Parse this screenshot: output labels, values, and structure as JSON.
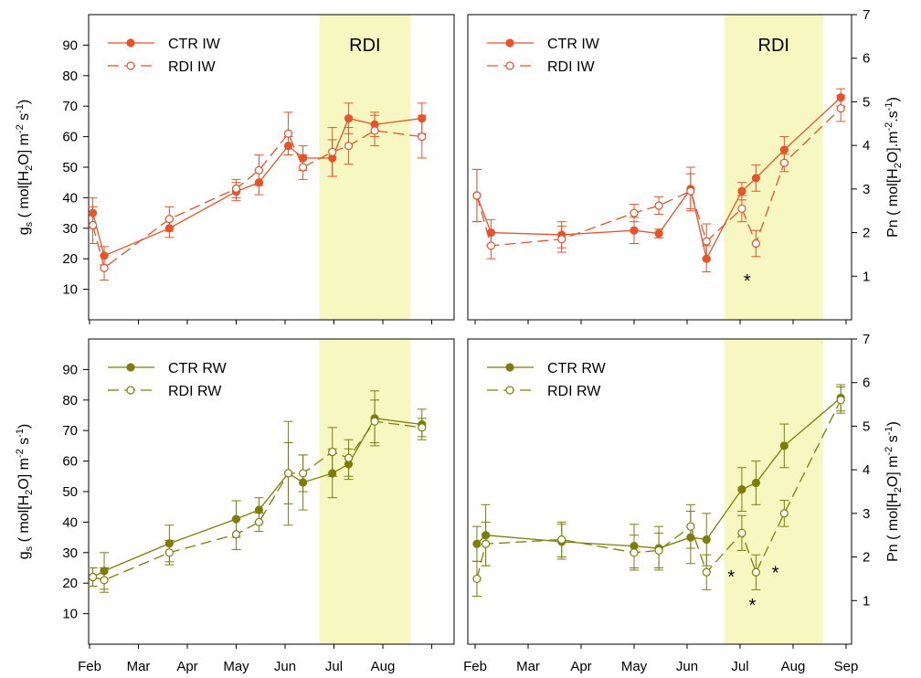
{
  "figure": {
    "months": [
      "Feb",
      "Mar",
      "Apr",
      "May",
      "Jun",
      "Jul",
      "Aug"
    ],
    "months_right": [
      "Feb",
      "Mar",
      "Apr",
      "May",
      "Jun",
      "Jul",
      "Aug",
      "Sep"
    ],
    "gs_ticks": [
      "10",
      "20",
      "30",
      "40",
      "50",
      "60",
      "70",
      "80",
      "90"
    ],
    "pn_ticks": [
      "1",
      "2",
      "3",
      "4",
      "5",
      "6",
      "7"
    ],
    "rdi_label": "RDI",
    "ylabel_left_top": "g s ( mol[H 2 O] m -2 s -1 )",
    "ylabel_left_bottom": "g s ( mol[H 2 O] m -2 s -1 )",
    "ylabel_right_top": "Pn ( mol[H 2 O].m -2 .s -1 )",
    "ylabel_right_bottom": "Pn ( mol[H 2 O] m -2 s -1 )",
    "colors": {
      "iw": "#e8532a",
      "rw": "#7d7d0a",
      "rdi_band": "#f7f7c2"
    }
  },
  "chart_data": [
    {
      "type": "line",
      "panel": "top-left",
      "ylabel": "gs (mol[H2O] m-2 s-1)",
      "ylim": [
        0,
        100
      ],
      "xlim": [
        "Feb",
        "Sep"
      ],
      "rdi_period": [
        "Jun 22",
        "Aug 18"
      ],
      "legend_position": "top-left",
      "series": [
        {
          "name": "CTR IW",
          "style": "solid-filled",
          "x": [
            "Feb 3",
            "Feb 10",
            "Mar 20",
            "May 1",
            "May 15",
            "Jun 3",
            "Jun 12",
            "Jun 30",
            "Jul 10",
            "Jul 26",
            "Aug 25"
          ],
          "y": [
            35,
            21,
            30,
            42,
            45,
            57,
            53,
            53,
            66,
            64,
            66
          ],
          "err": [
            5,
            3,
            3,
            3,
            4,
            3,
            4,
            6,
            5,
            4,
            5
          ]
        },
        {
          "name": "RDI IW",
          "style": "dashed-open",
          "x": [
            "Feb 3",
            "Feb 10",
            "Mar 20",
            "May 1",
            "May 15",
            "Jun 3",
            "Jun 12",
            "Jun 30",
            "Jul 10",
            "Jul 26",
            "Aug 25"
          ],
          "y": [
            31,
            17,
            33,
            43,
            49,
            61,
            50,
            55,
            57,
            62,
            60
          ],
          "err": [
            6,
            4,
            4,
            3,
            5,
            7,
            4,
            8,
            6,
            5,
            7
          ]
        }
      ]
    },
    {
      "type": "line",
      "panel": "top-right",
      "ylabel": "Pn (mol[H2O].m-2.s-1)",
      "ylim": [
        0,
        7
      ],
      "xlim": [
        "Feb",
        "Sep"
      ],
      "rdi_period": [
        "Jun 22",
        "Aug 18"
      ],
      "legend_position": "top-left",
      "annotations": [
        {
          "text": "*",
          "x": "Jul 5",
          "y": 0.9
        }
      ],
      "series": [
        {
          "name": "CTR IW",
          "style": "solid-filled",
          "x": [
            "Feb 2",
            "Feb 10",
            "Mar 20",
            "May 1",
            "May 15",
            "Jun 3",
            "Jun 12",
            "Jul 2",
            "Jul 10",
            "Jul 26",
            "Aug 28"
          ],
          "y": [
            2.85,
            2.0,
            1.95,
            2.05,
            1.98,
            3.0,
            1.4,
            2.95,
            3.25,
            3.9,
            5.1
          ],
          "err": [
            0.6,
            0.3,
            0.3,
            0.3,
            0.1,
            0.5,
            0.3,
            0.2,
            0.3,
            0.3,
            0.2
          ]
        },
        {
          "name": "RDI IW",
          "style": "dashed-open",
          "x": [
            "Feb 2",
            "Feb 10",
            "Mar 20",
            "May 1",
            "May 15",
            "Jun 3",
            "Jun 12",
            "Jul 2",
            "Jul 10",
            "Jul 26",
            "Aug 28"
          ],
          "y": [
            2.85,
            1.7,
            1.85,
            2.45,
            2.62,
            2.95,
            1.8,
            2.55,
            1.75,
            3.6,
            4.85
          ],
          "err": [
            0.6,
            0.3,
            0.3,
            0.2,
            0.2,
            0.4,
            0.4,
            0.3,
            0.3,
            0.2,
            0.3
          ]
        }
      ]
    },
    {
      "type": "line",
      "panel": "bottom-left",
      "ylabel": "gs (mol[H2O] m-2 s-1)",
      "ylim": [
        0,
        100
      ],
      "xlim": [
        "Feb",
        "Sep"
      ],
      "rdi_period": [
        "Jun 22",
        "Aug 18"
      ],
      "legend_position": "top-left",
      "series": [
        {
          "name": "CTR RW",
          "style": "solid-filled",
          "x": [
            "Feb 3",
            "Feb 10",
            "Mar 20",
            "May 1",
            "May 15",
            "Jun 3",
            "Jun 12",
            "Jun 30",
            "Jul 10",
            "Jul 26",
            "Aug 25"
          ],
          "y": [
            22,
            24,
            33,
            41,
            44,
            56,
            53,
            56,
            59,
            74,
            72
          ],
          "err": [
            3,
            6,
            6,
            6,
            4,
            17,
            9,
            8,
            5,
            9,
            5
          ]
        },
        {
          "name": "RDI RW",
          "style": "dashed-open",
          "x": [
            "Feb 3",
            "Feb 10",
            "Mar 20",
            "May 1",
            "May 15",
            "Jun 3",
            "Jun 12",
            "Jun 30",
            "Jul 10",
            "Jul 26",
            "Aug 25"
          ],
          "y": [
            22,
            21,
            30,
            36,
            40,
            56,
            56,
            63,
            61,
            73,
            71
          ],
          "err": [
            3,
            4,
            4,
            5,
            3,
            10,
            6,
            8,
            6,
            7,
            3
          ]
        }
      ]
    },
    {
      "type": "line",
      "panel": "bottom-right",
      "ylabel": "Pn (mol[H2O] m-2 s-1)",
      "ylim": [
        0,
        7
      ],
      "xlim": [
        "Feb",
        "Sep"
      ],
      "rdi_period": [
        "Jun 22",
        "Aug 18"
      ],
      "legend_position": "top-left",
      "annotations": [
        {
          "text": "*",
          "x": "Jun 26",
          "y": 1.55
        },
        {
          "text": "*",
          "x": "Jul 8",
          "y": 0.9
        },
        {
          "text": "*",
          "x": "Jul 21",
          "y": 1.65
        }
      ],
      "series": [
        {
          "name": "CTR RW",
          "style": "solid-filled",
          "x": [
            "Feb 2",
            "Feb 7",
            "Mar 20",
            "May 1",
            "May 15",
            "Jun 3",
            "Jun 12",
            "Jul 2",
            "Jul 10",
            "Jul 26",
            "Aug 28"
          ],
          "y": [
            2.3,
            2.5,
            2.35,
            2.25,
            2.2,
            2.45,
            2.4,
            3.55,
            3.7,
            4.55,
            5.65
          ],
          "err": [
            0.4,
            0.7,
            0.4,
            0.5,
            0.5,
            0.6,
            0.6,
            0.5,
            0.5,
            0.5,
            0.3
          ]
        },
        {
          "name": "RDI RW",
          "style": "dashed-open",
          "x": [
            "Feb 2",
            "Feb 7",
            "Mar 20",
            "May 1",
            "May 15",
            "Jun 3",
            "Jun 12",
            "Jul 2",
            "Jul 10",
            "Jul 26",
            "Aug 28"
          ],
          "y": [
            1.5,
            2.3,
            2.4,
            2.1,
            2.15,
            2.7,
            1.65,
            2.55,
            1.65,
            3.0,
            5.6
          ],
          "err": [
            0.4,
            0.5,
            0.4,
            0.4,
            0.4,
            0.5,
            0.4,
            0.4,
            0.4,
            0.3,
            0.3
          ]
        }
      ]
    }
  ]
}
